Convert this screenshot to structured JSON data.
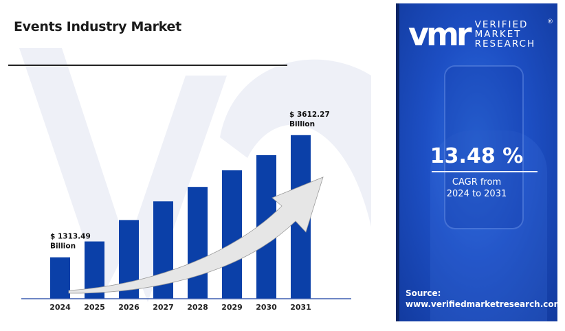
{
  "title": "Events Industry Market",
  "chart_data": {
    "type": "bar",
    "title": "Events Industry Market",
    "categories": [
      "2024",
      "2025",
      "2026",
      "2027",
      "2028",
      "2029",
      "2030",
      "2031"
    ],
    "values": [
      1313.49,
      1612,
      2015,
      2366,
      2638,
      2950,
      3236,
      3612.27
    ],
    "value_unit": "USD Billion",
    "data_labels": [
      {
        "index": 0,
        "line1": "$ 1313.49",
        "line2": "Billion"
      },
      {
        "index": 7,
        "line1": "$ 3612.27",
        "line2": "Billion"
      }
    ],
    "ylim": [
      534,
      3700
    ],
    "xlabel": "",
    "ylabel": "",
    "grid": false,
    "bar_color": "#0b40a8",
    "annotation": "upward trend arrow"
  },
  "panel": {
    "brand_mark": "vmr",
    "brand_lines": [
      "VERIFIED",
      "MARKET",
      "RESEARCH"
    ],
    "registered": "®",
    "cagr_value": "13.48 %",
    "cagr_line1": "CAGR from",
    "cagr_line2": "2024 to 2031",
    "source_label": "Source:",
    "source_url": "www.verifiedmarketresearch.com"
  }
}
